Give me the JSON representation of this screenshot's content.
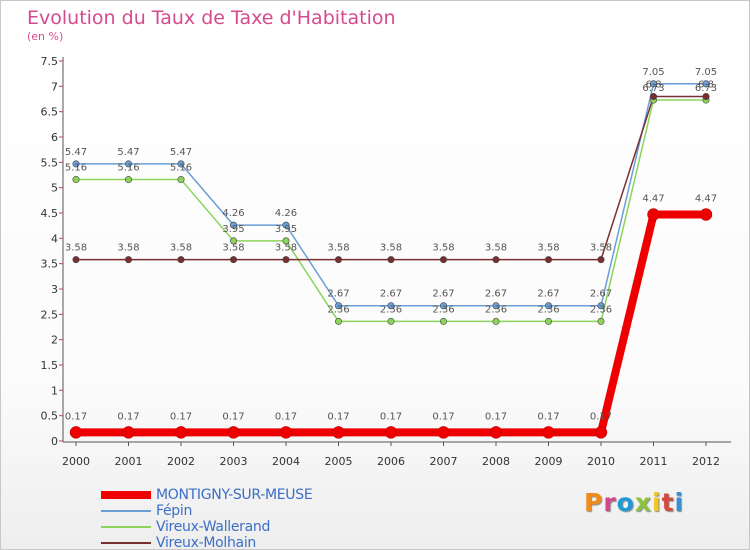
{
  "title": "Evolution du Taux de Taxe d'Habitation",
  "subtitle": "(en %)",
  "logo": {
    "text": "Proxiti",
    "colors": [
      "#f08c1e",
      "#d6458a",
      "#1e9ad6",
      "#8cc43c",
      "#f0c81e",
      "#d64a3c",
      "#3b8fd0"
    ]
  },
  "chart_data": {
    "type": "line",
    "title": "Evolution du Taux de Taxe d'Habitation",
    "ylabel": "(en %)",
    "xlabel": "",
    "x": [
      "2000",
      "2001",
      "2002",
      "2003",
      "2004",
      "2005",
      "2006",
      "2007",
      "2008",
      "2009",
      "2010",
      "2011",
      "2012"
    ],
    "ylim": [
      0,
      7.5
    ],
    "yticks": [
      "0",
      "0.5",
      "1",
      "1.5",
      "2",
      "2.5",
      "3",
      "3.5",
      "4",
      "4.5",
      "5",
      "5.5",
      "6",
      "6.5",
      "7",
      "7.5"
    ],
    "grid": false,
    "legend": "bottom-left",
    "series": [
      {
        "name": "MONTIGNY-SUR-MEUSE",
        "color": "#ee0000",
        "values": [
          0.17,
          0.17,
          0.17,
          0.17,
          0.17,
          0.17,
          0.17,
          0.17,
          0.17,
          0.17,
          0.17,
          4.47,
          4.47
        ]
      },
      {
        "name": "Fépin",
        "color": "#6a9fd6",
        "values": [
          5.47,
          5.47,
          5.47,
          4.26,
          4.26,
          2.67,
          2.67,
          2.67,
          2.67,
          2.67,
          2.67,
          7.05,
          7.05
        ]
      },
      {
        "name": "Vireux-Wallerand",
        "color": "#8cd45a",
        "values": [
          5.16,
          5.16,
          5.16,
          3.95,
          3.95,
          2.36,
          2.36,
          2.36,
          2.36,
          2.36,
          2.36,
          6.73,
          6.73
        ]
      },
      {
        "name": "Vireux-Molhain",
        "color": "#7a2f2f",
        "values": [
          3.58,
          3.58,
          3.58,
          3.58,
          3.58,
          3.58,
          3.58,
          3.58,
          3.58,
          3.58,
          3.58,
          6.8,
          6.8
        ]
      }
    ],
    "labels": [
      [
        "0.17",
        "0.17",
        "0.17",
        "0.17",
        "0.17",
        "0.17",
        "0.17",
        "0.17",
        "0.17",
        "0.17",
        "0.17",
        "4.47",
        "4.47"
      ],
      [
        "5.47",
        "5.47",
        "5.47",
        "4.26",
        "4.26",
        "2.67",
        "2.67",
        "2.67",
        "2.67",
        "2.67",
        "2.67",
        "7.05",
        "7.05"
      ],
      [
        "5.16",
        "5.16",
        "5.16",
        "3.95",
        "3.95",
        "2.36",
        "2.36",
        "2.36",
        "2.36",
        "2.36",
        "2.36",
        "6.73",
        "6.73"
      ],
      [
        "3.58",
        "3.58",
        "3.58",
        "3.58",
        "3.58",
        "3.58",
        "3.58",
        "3.58",
        "3.58",
        "3.58",
        "3.58",
        "6.8",
        "6.8"
      ]
    ]
  }
}
